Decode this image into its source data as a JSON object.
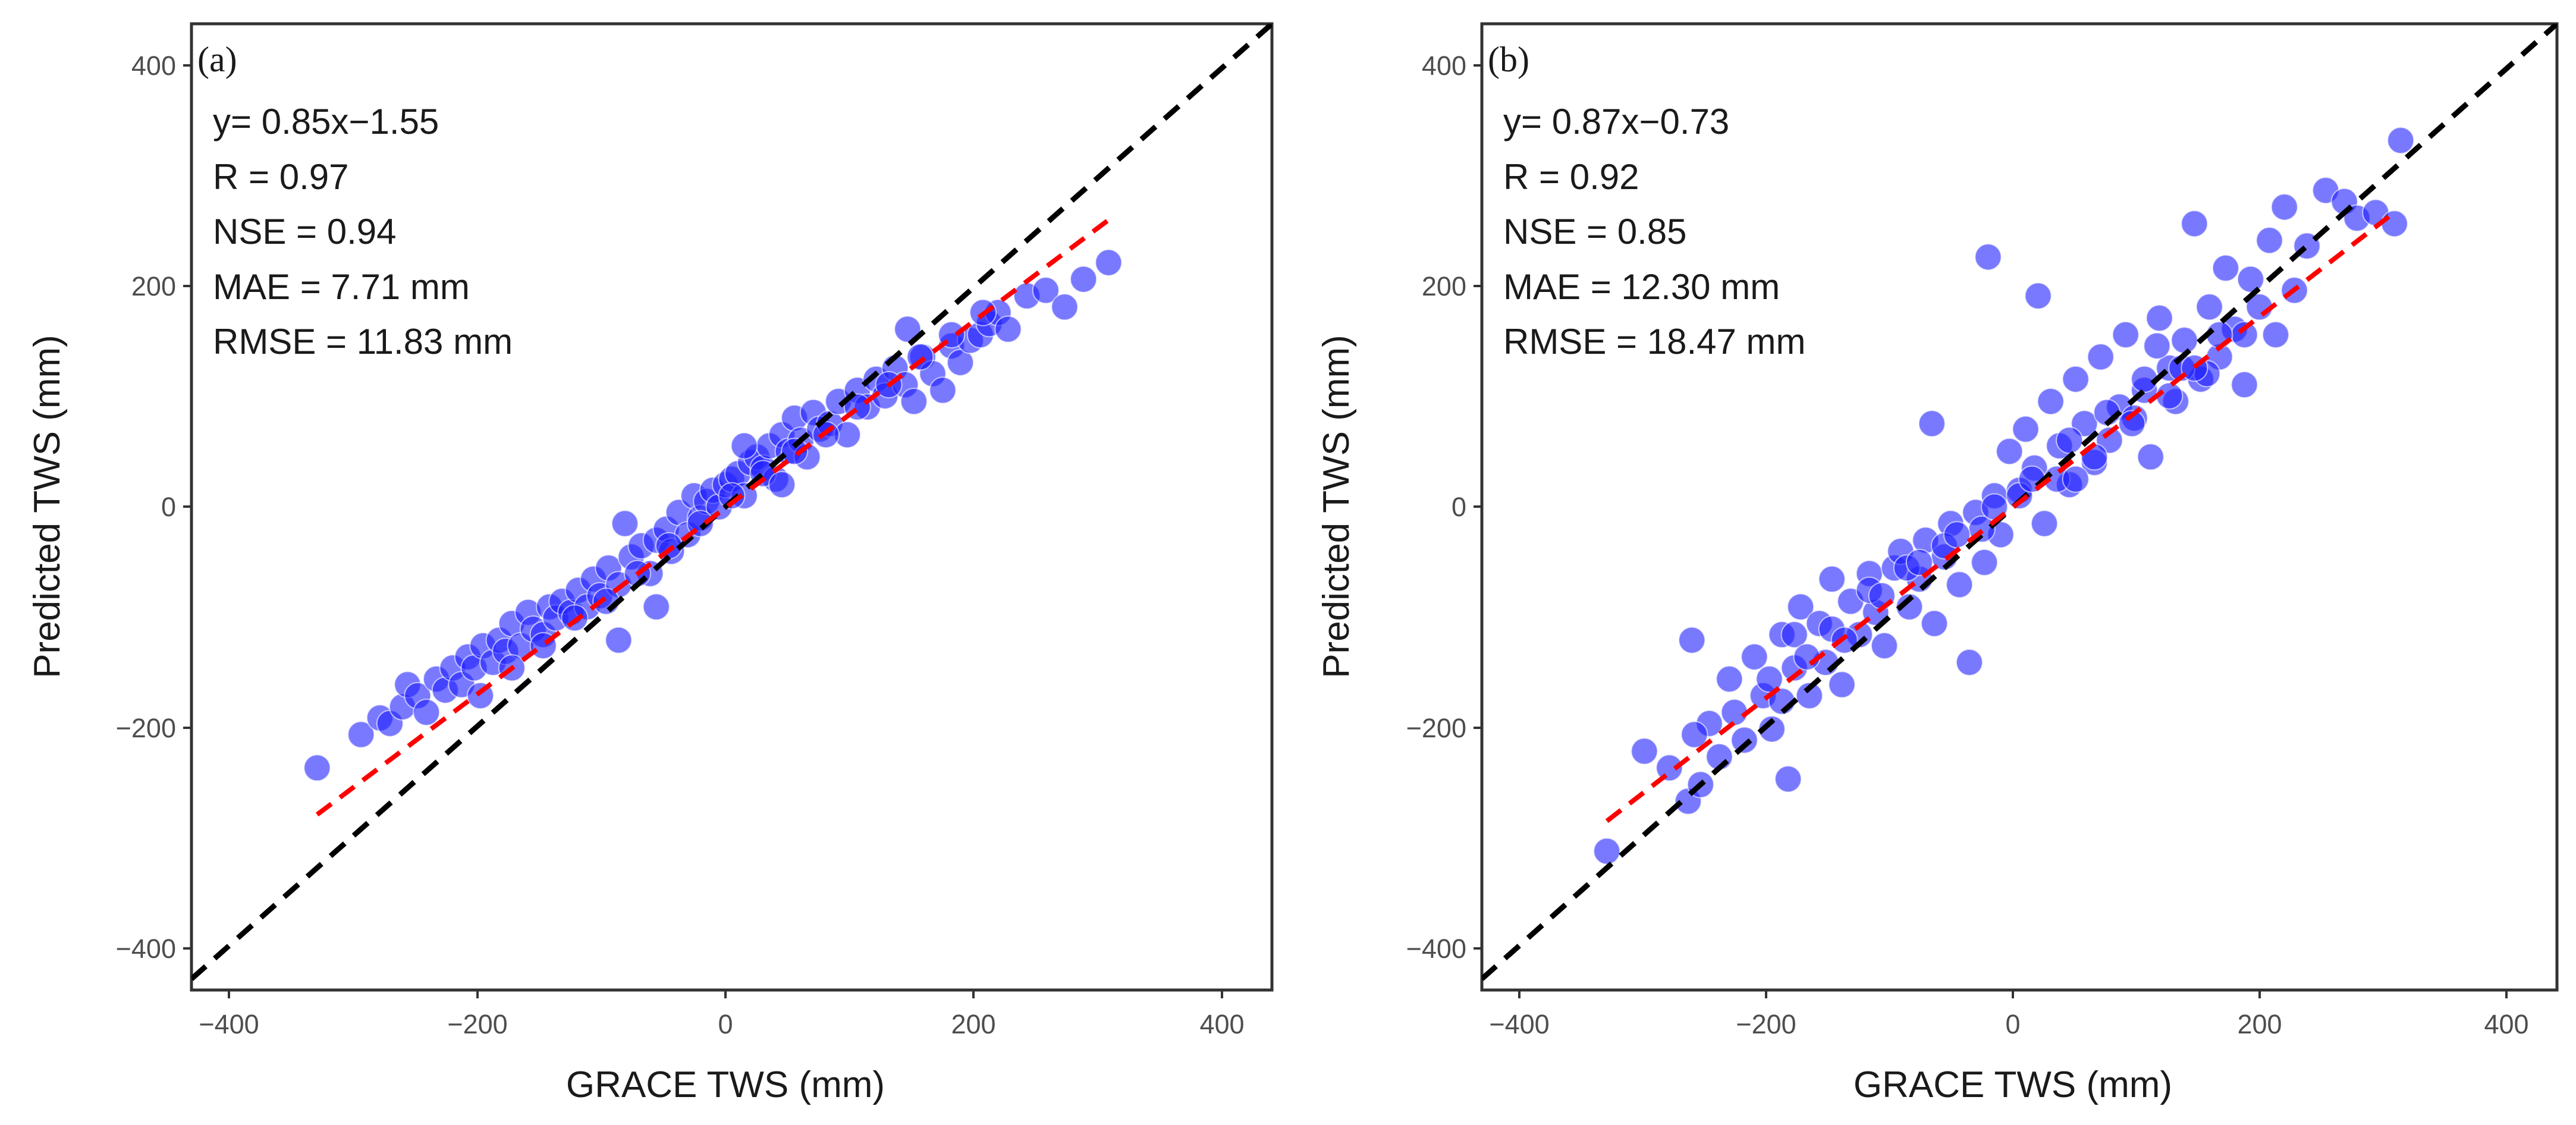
{
  "chart_data": [
    {
      "type": "scatter",
      "panel_label": "(a)",
      "xlabel": "GRACE TWS (mm)",
      "ylabel": "Predicted TWS (mm)",
      "xlim": [
        -430,
        430
      ],
      "ylim": [
        -440,
        430
      ],
      "xticks": [
        -400,
        -200,
        0,
        200,
        400
      ],
      "yticks": [
        -400,
        -200,
        0,
        200,
        400
      ],
      "xtick_labels": [
        "−400",
        "−200",
        "0",
        "200",
        "400"
      ],
      "ytick_labels": [
        "−400",
        "−200",
        "0",
        "200",
        "400"
      ],
      "grid": false,
      "point_color": "#1f1fff",
      "point_alpha": 0.6,
      "annotations": [
        "y= 0.85x−1.55",
        "R = 0.97",
        "NSE = 0.94",
        "MAE = 7.71 mm",
        "RMSE = 11.83 mm"
      ],
      "regression": {
        "slope": 0.85,
        "intercept": -1.55,
        "x_range": [
          -330,
          300
        ],
        "color": "#ff0000",
        "dash": "dashed"
      },
      "identity_line": {
        "color": "#000000",
        "dash": "dashed"
      },
      "x": [
        -330,
        -295,
        -280,
        -272,
        -262,
        -258,
        -250,
        -243,
        -235,
        -228,
        -222,
        -215,
        -210,
        -205,
        -198,
        -190,
        -185,
        -180,
        -175,
        -168,
        -162,
        -158,
        -150,
        -145,
        -140,
        -135,
        -128,
        -122,
        -115,
        -110,
        -105,
        -98,
        -90,
        -85,
        -80,
        -72,
        -65,
        -60,
        -52,
        -48,
        -42,
        -35,
        -30,
        -25,
        -20,
        -15,
        -10,
        -5,
        0,
        5,
        10,
        15,
        20,
        25,
        30,
        35,
        40,
        45,
        50,
        55,
        60,
        65,
        70,
        78,
        85,
        92,
        100,
        108,
        115,
        122,
        130,
        138,
        145,
        152,
        160,
        168,
        175,
        182,
        190,
        198,
        205,
        212,
        220,
        235,
        250,
        265,
        280,
        300,
        -200,
        -150,
        -100,
        -50,
        0,
        50,
        100,
        150,
        -175,
        -125,
        -75,
        -25,
        25,
        75,
        125,
        175,
        -90,
        -60,
        10,
        40,
        140,
        200
      ],
      "y": [
        -240,
        -210,
        -195,
        -200,
        -185,
        -165,
        -175,
        -190,
        -160,
        -170,
        -150,
        -165,
        -140,
        -150,
        -130,
        -145,
        -125,
        -135,
        -110,
        -130,
        -100,
        -115,
        -120,
        -95,
        -105,
        -90,
        -100,
        -80,
        -95,
        -70,
        -85,
        -60,
        -75,
        -20,
        -50,
        -40,
        -65,
        -35,
        -25,
        -45,
        -10,
        -30,
        5,
        -15,
        0,
        10,
        -5,
        15,
        20,
        25,
        5,
        35,
        40,
        30,
        50,
        20,
        60,
        45,
        75,
        55,
        40,
        80,
        65,
        70,
        90,
        60,
        100,
        85,
        110,
        95,
        120,
        105,
        90,
        130,
        115,
        100,
        140,
        125,
        145,
        150,
        160,
        170,
        155,
        185,
        190,
        175,
        200,
        215,
        -175,
        -130,
        -90,
        -40,
        5,
        45,
        85,
        130,
        -150,
        -105,
        -65,
        -20,
        25,
        60,
        105,
        150,
        -125,
        -95,
        50,
        15,
        155,
        170
      ]
    },
    {
      "type": "scatter",
      "panel_label": "(b)",
      "xlabel": "GRACE TWS (mm)",
      "ylabel": "Predicted TWS (mm)",
      "xlim": [
        -430,
        430
      ],
      "ylim": [
        -440,
        430
      ],
      "xticks": [
        -400,
        -200,
        0,
        200,
        400
      ],
      "yticks": [
        -400,
        -200,
        0,
        200,
        400
      ],
      "xtick_labels": [
        "−400",
        "−200",
        "0",
        "200",
        "400"
      ],
      "ytick_labels": [
        "−400",
        "−200",
        "0",
        "200",
        "400"
      ],
      "grid": false,
      "point_color": "#1f1fff",
      "point_alpha": 0.6,
      "annotations": [
        "y= 0.87x−0.73",
        "R = 0.92",
        "NSE = 0.85",
        "MAE = 12.30 mm",
        "RMSE = 18.47 mm"
      ],
      "regression": {
        "slope": 0.87,
        "intercept": -0.73,
        "x_range": [
          -330,
          300
        ],
        "color": "#ff0000",
        "dash": "dashed"
      },
      "identity_line": {
        "color": "#000000",
        "dash": "dashed"
      },
      "x": [
        -330,
        -300,
        -280,
        -265,
        -262,
        -255,
        -248,
        -240,
        -232,
        -228,
        -220,
        -212,
        -205,
        -198,
        -190,
        -185,
        -180,
        -175,
        -168,
        -160,
        -155,
        -150,
        -142,
        -135,
        -128,
        -120,
        -115,
        -108,
        -100,
        -95,
        -88,
        -80,
        -75,
        -68,
        -60,
        -55,
        -48,
        -40,
        -35,
        -28,
        -20,
        -15,
        -8,
        0,
        5,
        12,
        20,
        25,
        32,
        40,
        45,
        52,
        60,
        65,
        72,
        80,
        85,
        92,
        100,
        105,
        112,
        120,
        125,
        132,
        140,
        145,
        152,
        160,
        165,
        172,
        180,
        185,
        192,
        200,
        205,
        212,
        220,
        230,
        245,
        260,
        270,
        285,
        300,
        305,
        -200,
        -180,
        -150,
        -120,
        -90,
        -60,
        -30,
        0,
        30,
        60,
        90,
        120,
        150,
        180,
        -170,
        -140,
        -110,
        -80,
        -50,
        -20,
        10,
        40,
        70,
        100,
        130,
        160,
        -25,
        15,
        45,
        140,
        -260,
        -190,
        -70,
        110
      ],
      "y": [
        -315,
        -225,
        -240,
        -270,
        -125,
        -255,
        -200,
        -230,
        -160,
        -190,
        -215,
        -140,
        -175,
        -205,
        -120,
        -250,
        -150,
        -95,
        -175,
        -110,
        -145,
        -70,
        -165,
        -90,
        -120,
        -65,
        -100,
        -130,
        -60,
        -45,
        -95,
        -70,
        -35,
        -110,
        -50,
        -20,
        -75,
        -145,
        -10,
        -55,
        5,
        -30,
        45,
        10,
        65,
        30,
        -20,
        90,
        50,
        15,
        110,
        70,
        35,
        130,
        55,
        85,
        150,
        75,
        100,
        40,
        165,
        120,
        90,
        145,
        250,
        110,
        175,
        130,
        210,
        155,
        105,
        200,
        175,
        235,
        150,
        265,
        190,
        230,
        280,
        270,
        255,
        260,
        250,
        325,
        -160,
        -120,
        -115,
        -80,
        -60,
        -40,
        -25,
        5,
        20,
        40,
        70,
        95,
        115,
        150,
        -140,
        -125,
        -85,
        -55,
        -30,
        -5,
        20,
        55,
        80,
        110,
        120,
        150,
        220,
        185,
        20,
        120,
        -210,
        -180,
        70,
        140
      ]
    }
  ]
}
